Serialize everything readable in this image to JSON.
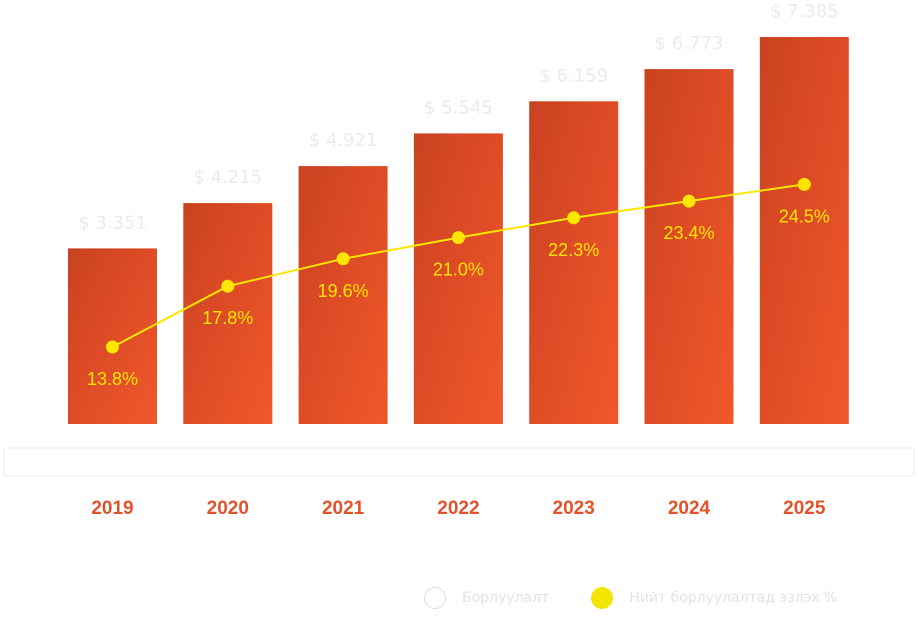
{
  "chart_data": {
    "type": "bar",
    "categories": [
      "2019",
      "2020",
      "2021",
      "2022",
      "2023",
      "2024",
      "2025"
    ],
    "series": [
      {
        "name": "Борлуулалт",
        "type": "bar",
        "values": [
          3351,
          4215,
          4921,
          5545,
          6159,
          6773,
          7385
        ],
        "labels": [
          "$ 3.351",
          "$ 4.215",
          "$ 4.921",
          "$ 5.545",
          "$ 6.159",
          "$ 6.773",
          "$ 7.385"
        ]
      },
      {
        "name": "Нийт борлуулалтад эзлэх %",
        "type": "line",
        "values": [
          13.8,
          17.8,
          19.6,
          21.0,
          22.3,
          23.4,
          24.5
        ],
        "labels": [
          "13.8%",
          "17.8%",
          "19.6%",
          "21.0%",
          "22.3%",
          "23.4%",
          "24.5%"
        ]
      }
    ],
    "title": "",
    "xlabel": "",
    "ylabel": "",
    "grid": false,
    "legend_position": "bottom-right",
    "colors": {
      "bar": "#e8552a",
      "bar_dark": "#c9421f",
      "line": "#ffe600",
      "value_text": "#ebebeb",
      "year_text": "#e2522b"
    }
  },
  "legend": {
    "sales": "Борлуулалт",
    "share": "Нийт борлуулалтад эзлэх %"
  }
}
